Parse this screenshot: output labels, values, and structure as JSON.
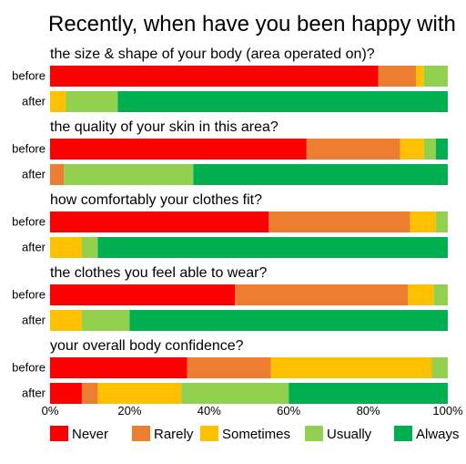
{
  "chart_data": {
    "type": "bar",
    "orientation": "horizontal",
    "stacked": true,
    "title": "Recently, when have you been happy with",
    "xlim": [
      0,
      100
    ],
    "x_ticks": [
      "0%",
      "20%",
      "40%",
      "60%",
      "80%",
      "100%"
    ],
    "legend_position": "bottom",
    "series": [
      {
        "name": "Never",
        "color": "#ff0000"
      },
      {
        "name": "Rarely",
        "color": "#ed7d31"
      },
      {
        "name": "Sometimes",
        "color": "#ffc000"
      },
      {
        "name": "Usually",
        "color": "#92d050"
      },
      {
        "name": "Always",
        "color": "#00b050"
      }
    ],
    "groups": [
      {
        "question": "the size & shape of your body (area operated on)?",
        "rows": [
          {
            "label": "before",
            "values": [
              82.5,
              9.5,
              2,
              6,
              0
            ]
          },
          {
            "label": "after",
            "values": [
              0,
              0,
              4,
              13,
              83
            ]
          }
        ]
      },
      {
        "question": "the quality of your skin in this area?",
        "rows": [
          {
            "label": "before",
            "values": [
              64.5,
              23.5,
              6,
              3,
              3
            ]
          },
          {
            "label": "after",
            "values": [
              0,
              3.5,
              0,
              32.5,
              64
            ]
          }
        ]
      },
      {
        "question": "how comfortably your clothes fit?",
        "rows": [
          {
            "label": "before",
            "values": [
              55,
              35.5,
              6.5,
              3,
              0
            ]
          },
          {
            "label": "after",
            "values": [
              0,
              0,
              8,
              4,
              88
            ]
          }
        ]
      },
      {
        "question": "the clothes you feel able to wear?",
        "rows": [
          {
            "label": "before",
            "values": [
              46.5,
              43.5,
              6.5,
              3.5,
              0
            ]
          },
          {
            "label": "after",
            "values": [
              0,
              0,
              8,
              12,
              80
            ]
          }
        ]
      },
      {
        "question": "your overall body confidence?",
        "rows": [
          {
            "label": "before",
            "values": [
              34.5,
              21,
              40.5,
              4,
              0
            ]
          },
          {
            "label": "after",
            "values": [
              8,
              4,
              21,
              27,
              40
            ]
          }
        ]
      }
    ]
  }
}
